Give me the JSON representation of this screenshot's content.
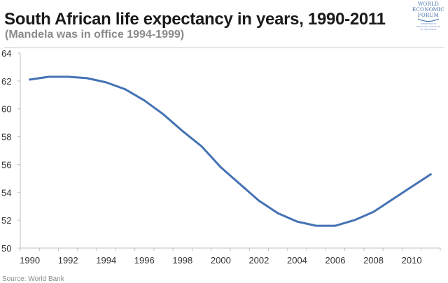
{
  "header": {
    "title": "South African life expectancy in years, 1990-2011",
    "subtitle": "(Mandela was in office 1994-1999)"
  },
  "logo": {
    "lines": [
      "WORLD",
      "ECONOMIC",
      "FORUM"
    ],
    "tagline": [
      "COMMITTED TO",
      "IMPROVING THE STATE",
      "OF THE WORLD"
    ],
    "icon": "wef-swoosh-icon"
  },
  "footer": {
    "source": "Source: World Bank"
  },
  "colors": {
    "line": "#4472b4",
    "axis": "#c0c0c0",
    "title": "#1a1a1a",
    "subtitle": "#8a8a8a"
  },
  "chart_data": {
    "type": "line",
    "title": "South African life expectancy in years, 1990-2011",
    "subtitle": "(Mandela was in office 1994-1999)",
    "xlabel": "",
    "ylabel": "",
    "x": [
      1990,
      1991,
      1992,
      1993,
      1994,
      1995,
      1996,
      1997,
      1998,
      1999,
      2000,
      2001,
      2002,
      2003,
      2004,
      2005,
      2006,
      2007,
      2008,
      2009,
      2010,
      2011
    ],
    "x_tick_labels": [
      "1990",
      "1992",
      "1994",
      "1996",
      "1998",
      "2000",
      "2002",
      "2004",
      "2006",
      "2008",
      "2010"
    ],
    "y_tick_labels": [
      "50",
      "52",
      "54",
      "56",
      "58",
      "60",
      "62",
      "64"
    ],
    "ylim": [
      50,
      64
    ],
    "grid": false,
    "legend": "none",
    "series": [
      {
        "name": "Life expectancy",
        "values": [
          62.1,
          62.3,
          62.3,
          62.2,
          61.9,
          61.4,
          60.6,
          59.6,
          58.4,
          57.3,
          55.8,
          54.6,
          53.4,
          52.5,
          51.9,
          51.6,
          51.6,
          52.0,
          52.6,
          53.5,
          54.4,
          55.3
        ]
      }
    ],
    "source": "Source: World Bank"
  }
}
